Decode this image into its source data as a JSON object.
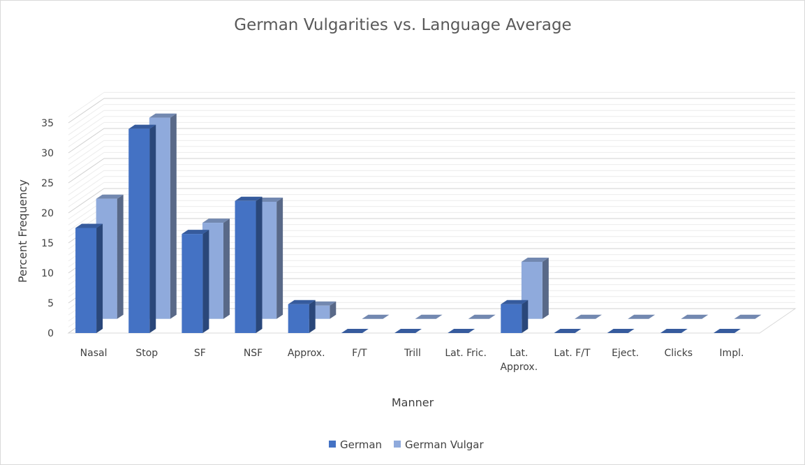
{
  "chart_data": {
    "type": "bar",
    "title": "German Vulgarities vs. Language Average",
    "xlabel": "Manner",
    "ylabel": "Percent Frequency",
    "categories": [
      "Nasal",
      "Stop",
      "SF",
      "NSF",
      "Approx.",
      "F/T",
      "Trill",
      "Lat. Fric.",
      "Lat. Approx.",
      "Lat. F/T",
      "Eject.",
      "Clicks",
      "Impl."
    ],
    "category_lines": [
      [
        "Nasal"
      ],
      [
        "Stop"
      ],
      [
        "SF"
      ],
      [
        "NSF"
      ],
      [
        "Approx."
      ],
      [
        "F/T"
      ],
      [
        "Trill"
      ],
      [
        "Lat. Fric."
      ],
      [
        "Lat.",
        "Approx."
      ],
      [
        "Lat. F/T"
      ],
      [
        "Eject."
      ],
      [
        "Clicks"
      ],
      [
        "Impl."
      ]
    ],
    "ylim": [
      0,
      35
    ],
    "yticks": [
      0,
      5,
      10,
      15,
      20,
      25,
      30,
      35
    ],
    "grid": true,
    "legend_position": "bottom",
    "series": [
      {
        "name": "German",
        "color": "#4472c4",
        "values": [
          17.5,
          34,
          16.5,
          22,
          4.8,
          0,
          0,
          0,
          4.8,
          0,
          0,
          0,
          0
        ]
      },
      {
        "name": "German Vulgar",
        "color": "#8faadc",
        "values": [
          20,
          33.5,
          16,
          19.5,
          2.2,
          0,
          0,
          0,
          9.5,
          0,
          0,
          0,
          0
        ]
      }
    ]
  }
}
